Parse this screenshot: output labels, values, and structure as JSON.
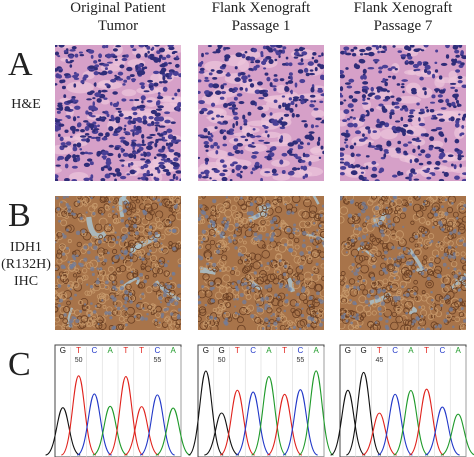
{
  "columns": [
    {
      "lines": [
        "Original Patient",
        "Tumor"
      ]
    },
    {
      "lines": [
        "Flank Xenograft",
        "Passage 1"
      ]
    },
    {
      "lines": [
        "Flank Xenograft",
        "Passage 7"
      ]
    }
  ],
  "rows": [
    {
      "letter": "A",
      "label": [
        "H&E"
      ]
    },
    {
      "letter": "B",
      "label": [
        "IDH1",
        "(R132H)",
        "IHC"
      ]
    },
    {
      "letter": "C"
    }
  ],
  "chromatograms": [
    {
      "bases": [
        "G",
        "T",
        "C",
        "A",
        "T",
        "T",
        "C",
        "A"
      ],
      "numbers": [
        "50",
        "55"
      ]
    },
    {
      "bases": [
        "G",
        "G",
        "T",
        "C",
        "A",
        "T",
        "C",
        "A"
      ],
      "numbers": [
        "50",
        "55"
      ]
    },
    {
      "bases": [
        "G",
        "G",
        "T",
        "C",
        "A",
        "T",
        "C",
        "A"
      ],
      "numbers": [
        "45"
      ]
    }
  ]
}
